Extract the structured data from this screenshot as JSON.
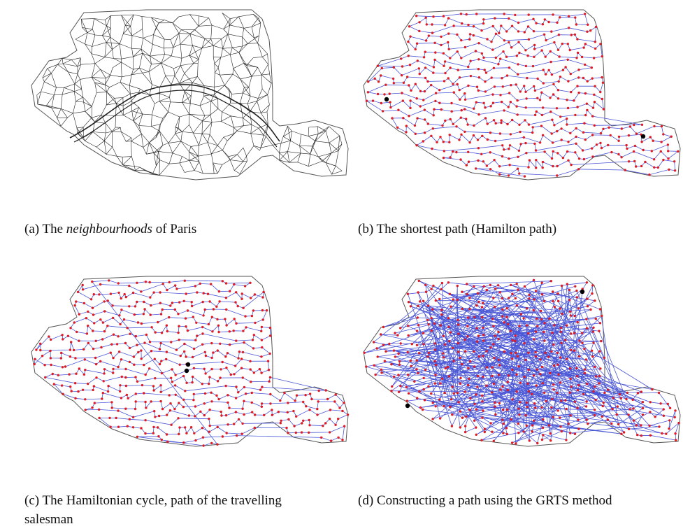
{
  "figure": {
    "colors": {
      "outline": "#555555",
      "streets": "#222222",
      "nodes": "#e01b24",
      "path": "#4a57d6",
      "endpoints": "#000000"
    },
    "panels": [
      {
        "id": "a",
        "caption_prefix": "(a) The ",
        "caption_emph": "neighbourhoods",
        "caption_suffix": " of Paris",
        "kind": "street-map"
      },
      {
        "id": "b",
        "caption": "(b) The shortest path (Hamilton path)",
        "kind": "hamilton-path"
      },
      {
        "id": "c",
        "caption": "(c) The Hamiltonian cycle, path of the travelling salesman",
        "kind": "hamilton-cycle"
      },
      {
        "id": "d",
        "caption": "(d) Constructing a path using the GRTS method",
        "kind": "grts-path"
      }
    ]
  }
}
